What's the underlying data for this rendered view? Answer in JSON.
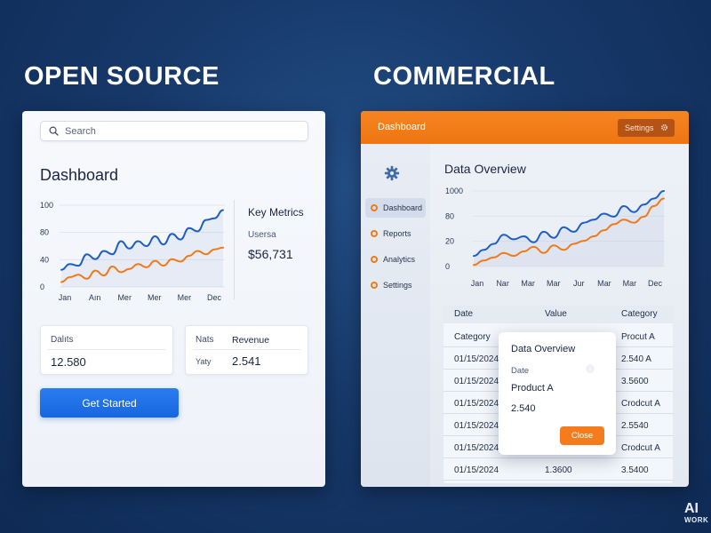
{
  "headings": {
    "left": "OPEN SOURCE",
    "right": "COMMERCIAL"
  },
  "open_source": {
    "search": {
      "placeholder": "Search"
    },
    "title": "Dashboard",
    "chart": {
      "type": "line",
      "categories": [
        "Jan",
        "Aın",
        "Mer",
        "Mer",
        "Mer",
        "Dec"
      ],
      "y_ticks": [
        "100",
        "80",
        "40",
        "0"
      ],
      "series": [
        {
          "color": "#1f5fc4",
          "values": [
            21,
            28,
            26,
            40,
            34,
            44,
            40,
            56,
            47,
            56,
            50,
            62,
            52,
            65,
            58,
            72,
            68,
            82,
            84,
            94
          ]
        },
        {
          "color": "#f07a1a",
          "values": [
            6,
            12,
            15,
            10,
            20,
            14,
            25,
            18,
            22,
            28,
            24,
            32,
            26,
            34,
            31,
            38,
            44,
            40,
            46,
            48
          ]
        }
      ]
    },
    "key_metrics": {
      "title": "Key Metrics",
      "label": "Usersa",
      "value": "$56,731"
    },
    "card_a": {
      "label": "Dalıts",
      "value": "12.580"
    },
    "card_b": {
      "label_a": "Nats",
      "label_b": "Revenue",
      "sub": "Yaty",
      "value": "2.541"
    },
    "cta_label": "Get Started"
  },
  "commercial": {
    "topbar_title": "Dashboard",
    "settings_label": "Settings",
    "sidebar": [
      {
        "label": "Dashboard",
        "active": true
      },
      {
        "label": "Reports",
        "active": false
      },
      {
        "label": "Analytics",
        "active": false
      },
      {
        "label": "Settings",
        "active": false
      }
    ],
    "chart_title": "Data Overview",
    "chart": {
      "type": "line",
      "categories": [
        "Jan",
        "Nar",
        "Mar",
        "Mar",
        "Jur",
        "Mar",
        "Mar",
        "Dec"
      ],
      "y_ticks": [
        "1000",
        "80",
        "20",
        "0"
      ],
      "series": [
        {
          "color": "#1f5fc4",
          "values": [
            14,
            22,
            30,
            42,
            36,
            40,
            32,
            46,
            38,
            52,
            46,
            58,
            62,
            70,
            66,
            80,
            72,
            82,
            90,
            100
          ]
        },
        {
          "color": "#f07a1a",
          "values": [
            2,
            8,
            12,
            18,
            14,
            20,
            26,
            18,
            28,
            22,
            30,
            34,
            40,
            48,
            56,
            62,
            58,
            66,
            80,
            90
          ]
        }
      ]
    },
    "table": {
      "headers": [
        "Date",
        "Value",
        "Category"
      ],
      "rows": [
        [
          "Category",
          "",
          "Procut A"
        ],
        [
          "01/15/2024",
          "",
          "2.540 A"
        ],
        [
          "01/15/2024",
          "",
          "3.5600"
        ],
        [
          "01/15/2024",
          "",
          "Crodcut A"
        ],
        [
          "01/15/2024",
          "",
          "2.5540"
        ],
        [
          "01/15/2024",
          "",
          "Crodcut A"
        ],
        [
          "01/15/2024",
          "1.3600",
          "3.5400"
        ]
      ]
    },
    "modal": {
      "title": "Data Overview",
      "date_label": "Date",
      "product": "Product A",
      "value": "2.540",
      "close_label": "Close"
    }
  },
  "watermark": {
    "line1": "AI",
    "line2": "WORK"
  }
}
